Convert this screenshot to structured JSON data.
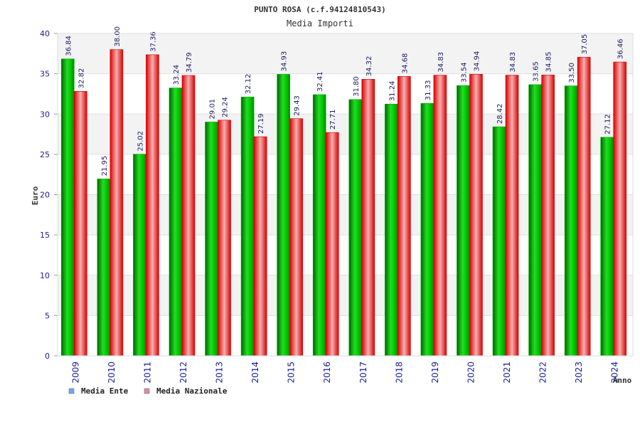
{
  "chart_data": {
    "type": "bar",
    "title": "PUNTO ROSA (c.f.94124810543)",
    "subtitle": "Media Importi",
    "ylabel": "Euro",
    "xlabel": "Anno",
    "ylim": [
      0,
      40
    ],
    "yticks": [
      "0",
      "5",
      "10",
      "15",
      "20",
      "25",
      "30",
      "35",
      "40"
    ],
    "grid": true,
    "categories": [
      "2009",
      "2010",
      "2011",
      "2012",
      "2013",
      "2014",
      "2015",
      "2016",
      "2017",
      "2018",
      "2019",
      "2020",
      "2021",
      "2022",
      "2023",
      "2024"
    ],
    "series": [
      {
        "name": "Media Ente",
        "color": "#00bb00",
        "legend_color": "#66aaee",
        "values": [
          36.84,
          21.95,
          25.02,
          33.24,
          29.01,
          32.12,
          34.93,
          32.41,
          31.8,
          31.24,
          31.33,
          33.54,
          28.42,
          33.65,
          33.5,
          27.12
        ],
        "labels": [
          "36.84",
          "21.95",
          "25.02",
          "33.24",
          "29.01",
          "32.12",
          "34.93",
          "32.41",
          "31.80",
          "31.24",
          "31.33",
          "33.54",
          "28.42",
          "33.65",
          "33.50",
          "27.12"
        ]
      },
      {
        "name": "Media Nazionale",
        "color": "#ee1111",
        "legend_color": "#dd88aa",
        "values": [
          32.82,
          38.0,
          37.36,
          34.79,
          29.24,
          27.19,
          29.43,
          27.71,
          34.32,
          34.68,
          34.83,
          34.94,
          34.83,
          34.85,
          37.05,
          36.46
        ],
        "labels": [
          "32.82",
          "38.00",
          "37.36",
          "34.79",
          "29.24",
          "27.19",
          "29.43",
          "27.71",
          "34.32",
          "34.68",
          "34.83",
          "34.94",
          "34.83",
          "34.85",
          "37.05",
          "36.46"
        ]
      }
    ]
  }
}
